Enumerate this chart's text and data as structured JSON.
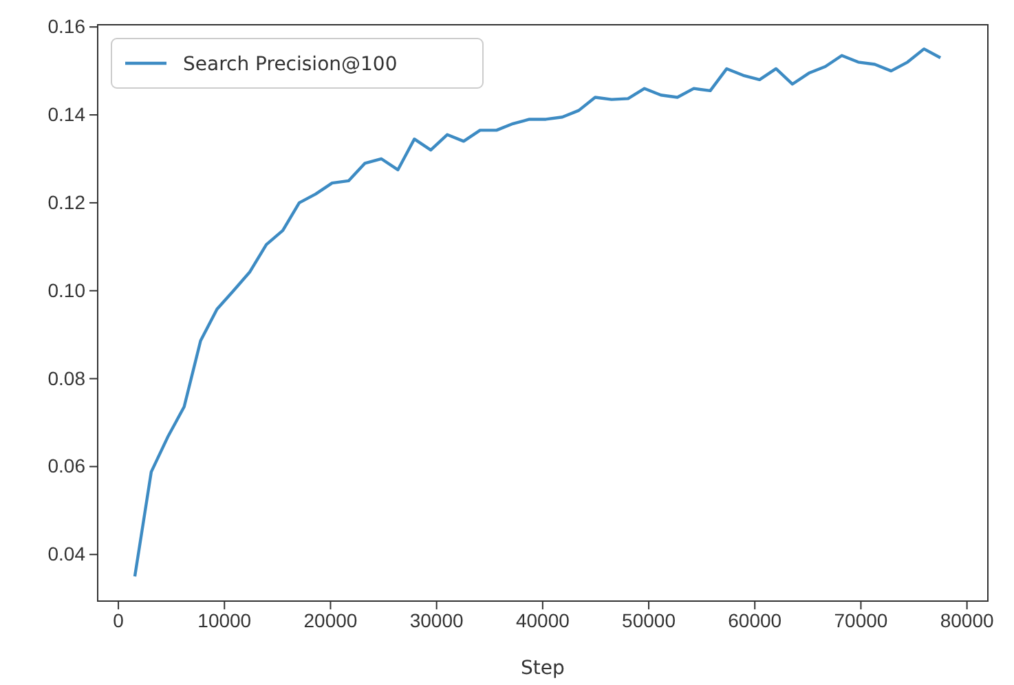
{
  "chart_data": {
    "type": "line",
    "xlabel": "Step",
    "x": [
      1550,
      3100,
      4650,
      6200,
      7750,
      9300,
      10850,
      12400,
      13950,
      15500,
      17050,
      18600,
      20150,
      21700,
      23250,
      24800,
      26350,
      27900,
      29450,
      31000,
      32550,
      34100,
      35650,
      37200,
      38750,
      40300,
      41850,
      43400,
      44950,
      46500,
      48050,
      49600,
      51150,
      52700,
      54250,
      55800,
      57350,
      58900,
      60450,
      62000,
      63550,
      65100,
      66650,
      68200,
      69750,
      71300,
      72850,
      74400,
      75950,
      77500
    ],
    "series": [
      {
        "name": "Search Precision@100",
        "color": "#3d8bc3",
        "values": [
          0.035,
          0.0588,
          0.0667,
          0.0736,
          0.0886,
          0.0958,
          0.1,
          0.1043,
          0.1105,
          0.1137,
          0.12,
          0.122,
          0.1245,
          0.125,
          0.129,
          0.13,
          0.1275,
          0.1345,
          0.132,
          0.1355,
          0.134,
          0.1365,
          0.1365,
          0.138,
          0.139,
          0.139,
          0.1395,
          0.141,
          0.144,
          0.1435,
          0.1437,
          0.146,
          0.1445,
          0.144,
          0.146,
          0.1455,
          0.1505,
          0.149,
          0.148,
          0.1505,
          0.147,
          0.1495,
          0.151,
          0.1535,
          0.152,
          0.1515,
          0.15,
          0.152,
          0.155,
          0.153
        ]
      }
    ],
    "xlim": [
      -1950,
      81970
    ],
    "ylim": [
      0.0294,
      0.1605
    ],
    "xticks": [
      0,
      10000,
      20000,
      30000,
      40000,
      50000,
      60000,
      70000,
      80000
    ],
    "yticks": [
      {
        "value": 0.04,
        "label": "0.04"
      },
      {
        "value": 0.06,
        "label": "0.06"
      },
      {
        "value": 0.08,
        "label": "0.08"
      },
      {
        "value": 0.1,
        "label": "0.10"
      },
      {
        "value": 0.12,
        "label": "0.12"
      },
      {
        "value": 0.14,
        "label": "0.14"
      },
      {
        "value": 0.16,
        "label": "0.16"
      }
    ],
    "legend": "top left",
    "grid": false
  }
}
